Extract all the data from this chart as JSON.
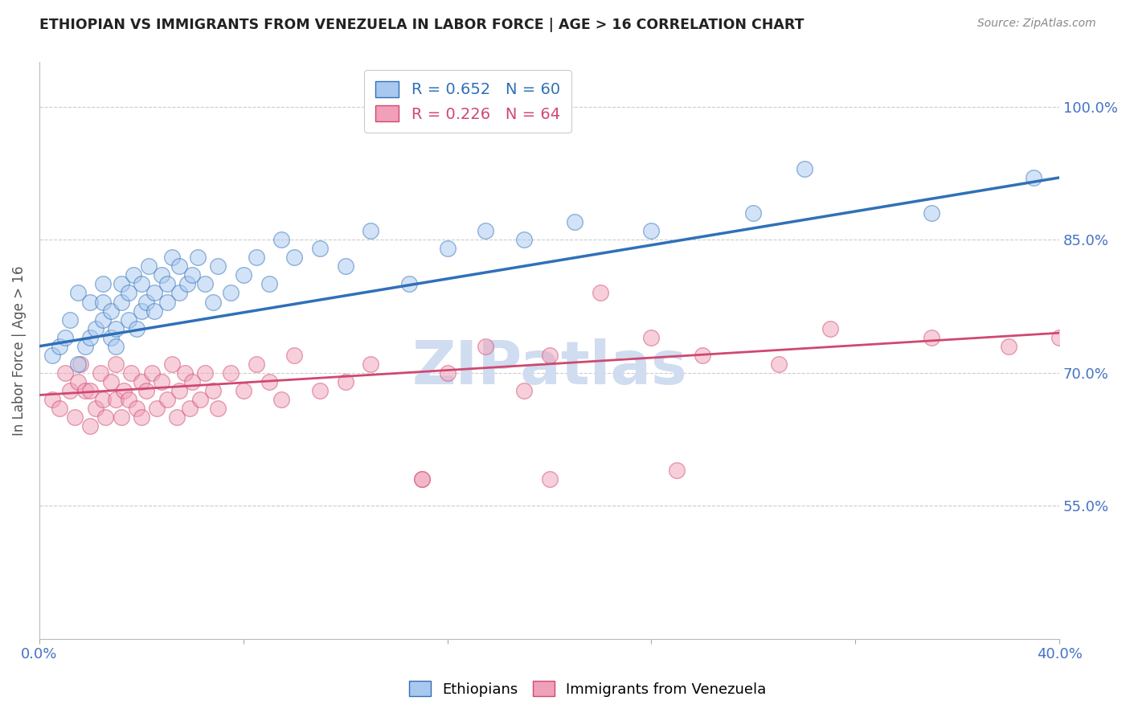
{
  "title": "ETHIOPIAN VS IMMIGRANTS FROM VENEZUELA IN LABOR FORCE | AGE > 16 CORRELATION CHART",
  "source": "Source: ZipAtlas.com",
  "ylabel": "In Labor Force | Age > 16",
  "ytick_labels": [
    "100.0%",
    "85.0%",
    "70.0%",
    "55.0%"
  ],
  "ytick_values": [
    1.0,
    0.85,
    0.7,
    0.55
  ],
  "xmin": 0.0,
  "xmax": 0.4,
  "ymin": 0.4,
  "ymax": 1.05,
  "blue_R": 0.652,
  "pink_R": 0.226,
  "blue_N": 60,
  "pink_N": 64,
  "blue_color": "#A8C8F0",
  "blue_line_color": "#3070B8",
  "pink_color": "#F0A0B8",
  "pink_line_color": "#D04870",
  "watermark": "ZIPatlas",
  "watermark_color": "#D0DCF0",
  "background_color": "#FFFFFF",
  "grid_color": "#CCCCCC",
  "title_color": "#222222",
  "axis_tick_color": "#4472C4",
  "blue_line_y0": 0.73,
  "blue_line_y1": 0.92,
  "pink_line_y0": 0.675,
  "pink_line_y1": 0.745,
  "blue_scatter_x": [
    0.005,
    0.008,
    0.01,
    0.012,
    0.015,
    0.015,
    0.018,
    0.02,
    0.02,
    0.022,
    0.025,
    0.025,
    0.025,
    0.028,
    0.028,
    0.03,
    0.03,
    0.032,
    0.032,
    0.035,
    0.035,
    0.037,
    0.038,
    0.04,
    0.04,
    0.042,
    0.043,
    0.045,
    0.045,
    0.048,
    0.05,
    0.05,
    0.052,
    0.055,
    0.055,
    0.058,
    0.06,
    0.062,
    0.065,
    0.068,
    0.07,
    0.075,
    0.08,
    0.085,
    0.09,
    0.095,
    0.1,
    0.11,
    0.12,
    0.13,
    0.145,
    0.16,
    0.175,
    0.19,
    0.21,
    0.24,
    0.28,
    0.3,
    0.35,
    0.39
  ],
  "blue_scatter_y": [
    0.72,
    0.73,
    0.74,
    0.76,
    0.71,
    0.79,
    0.73,
    0.74,
    0.78,
    0.75,
    0.76,
    0.78,
    0.8,
    0.74,
    0.77,
    0.73,
    0.75,
    0.78,
    0.8,
    0.76,
    0.79,
    0.81,
    0.75,
    0.77,
    0.8,
    0.78,
    0.82,
    0.77,
    0.79,
    0.81,
    0.8,
    0.78,
    0.83,
    0.79,
    0.82,
    0.8,
    0.81,
    0.83,
    0.8,
    0.78,
    0.82,
    0.79,
    0.81,
    0.83,
    0.8,
    0.85,
    0.83,
    0.84,
    0.82,
    0.86,
    0.8,
    0.84,
    0.86,
    0.85,
    0.87,
    0.86,
    0.88,
    0.93,
    0.88,
    0.92
  ],
  "pink_scatter_x": [
    0.005,
    0.008,
    0.01,
    0.012,
    0.014,
    0.015,
    0.016,
    0.018,
    0.02,
    0.02,
    0.022,
    0.024,
    0.025,
    0.026,
    0.028,
    0.03,
    0.03,
    0.032,
    0.033,
    0.035,
    0.036,
    0.038,
    0.04,
    0.04,
    0.042,
    0.044,
    0.046,
    0.048,
    0.05,
    0.052,
    0.054,
    0.055,
    0.057,
    0.059,
    0.06,
    0.063,
    0.065,
    0.068,
    0.07,
    0.075,
    0.08,
    0.085,
    0.09,
    0.095,
    0.1,
    0.11,
    0.12,
    0.13,
    0.15,
    0.16,
    0.175,
    0.19,
    0.2,
    0.22,
    0.24,
    0.26,
    0.29,
    0.31,
    0.35,
    0.38,
    0.15,
    0.2,
    0.25,
    0.4
  ],
  "pink_scatter_y": [
    0.67,
    0.66,
    0.7,
    0.68,
    0.65,
    0.69,
    0.71,
    0.68,
    0.64,
    0.68,
    0.66,
    0.7,
    0.67,
    0.65,
    0.69,
    0.67,
    0.71,
    0.65,
    0.68,
    0.67,
    0.7,
    0.66,
    0.69,
    0.65,
    0.68,
    0.7,
    0.66,
    0.69,
    0.67,
    0.71,
    0.65,
    0.68,
    0.7,
    0.66,
    0.69,
    0.67,
    0.7,
    0.68,
    0.66,
    0.7,
    0.68,
    0.71,
    0.69,
    0.67,
    0.72,
    0.68,
    0.69,
    0.71,
    0.58,
    0.7,
    0.73,
    0.68,
    0.72,
    0.79,
    0.74,
    0.72,
    0.71,
    0.75,
    0.74,
    0.73,
    0.58,
    0.58,
    0.59,
    0.74
  ],
  "xtick_positions": [
    0.0,
    0.08,
    0.16,
    0.24,
    0.32,
    0.4
  ],
  "xtick_labels": [
    "0.0%",
    "",
    "",
    "",
    "",
    "40.0%"
  ]
}
